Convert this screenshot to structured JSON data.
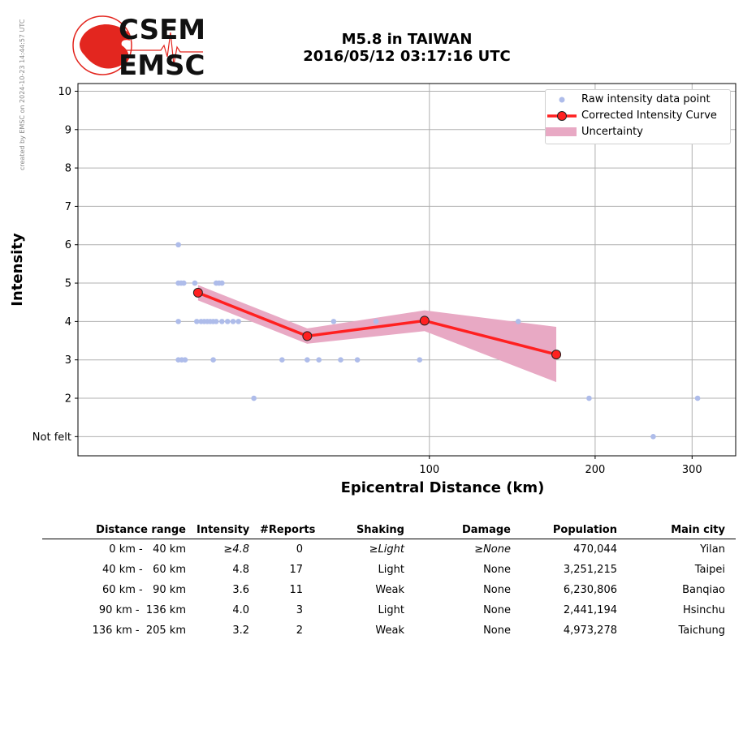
{
  "watermark": "created by EMSC on 2024-10-23 14:44:57 UTC",
  "logo": {
    "top_text": "CSEM",
    "bottom_text": "EMSC"
  },
  "header": {
    "title_line1": "M5.8 in TAIWAN",
    "title_line2": "2016/05/12 03:17:16 UTC"
  },
  "colors": {
    "raw": "#aebcea",
    "curve": "#ff2020",
    "marker": "#ff2020",
    "band": "#e8a9c4",
    "grid": "#b0b0b0",
    "logo_red": "#e3261f"
  },
  "chart_data": {
    "type": "line",
    "xlabel": "Epicentral Distance (km)",
    "ylabel": "Intensity",
    "x_scale": "log",
    "xlim": [
      23,
      360
    ],
    "ylim": [
      0.5,
      10.2
    ],
    "x_ticks": [
      100,
      200,
      300
    ],
    "y_ticks": [
      1,
      2,
      3,
      4,
      5,
      6,
      7,
      8,
      9,
      10
    ],
    "y_tick_labels": [
      "Not felt",
      "2",
      "3",
      "4",
      "5",
      "6",
      "7",
      "8",
      "9",
      "10"
    ],
    "grid": true,
    "legend_position": "top-right",
    "legend": [
      "Raw intensity data point",
      "Corrected Intensity Curve",
      "Uncertainty"
    ],
    "raw_points": [
      [
        35,
        6
      ],
      [
        35,
        5
      ],
      [
        35.4,
        5
      ],
      [
        35.8,
        5
      ],
      [
        37.5,
        5
      ],
      [
        41,
        5
      ],
      [
        41.5,
        5
      ],
      [
        42,
        5
      ],
      [
        35,
        4
      ],
      [
        37.8,
        4
      ],
      [
        38.5,
        4
      ],
      [
        39,
        4
      ],
      [
        39.5,
        4
      ],
      [
        40,
        4
      ],
      [
        40.5,
        4
      ],
      [
        41,
        4
      ],
      [
        42,
        4
      ],
      [
        43,
        4
      ],
      [
        44,
        4
      ],
      [
        45,
        4
      ],
      [
        35,
        3
      ],
      [
        35.5,
        3
      ],
      [
        36,
        3
      ],
      [
        40.5,
        3
      ],
      [
        48,
        2
      ],
      [
        54,
        3
      ],
      [
        60,
        3
      ],
      [
        63,
        3
      ],
      [
        67,
        4
      ],
      [
        69,
        3
      ],
      [
        74,
        3
      ],
      [
        80,
        4
      ],
      [
        96,
        3
      ],
      [
        145,
        4
      ],
      [
        195,
        2
      ],
      [
        255,
        1
      ],
      [
        307,
        2
      ]
    ],
    "curve": {
      "x": [
        38,
        60,
        98,
        170
      ],
      "y": [
        4.75,
        3.62,
        4.02,
        3.14
      ]
    },
    "uncertainty": {
      "x": [
        38,
        60,
        98,
        170
      ],
      "lower": [
        4.55,
        3.42,
        3.75,
        2.42
      ],
      "upper": [
        4.95,
        3.82,
        4.29,
        3.86
      ]
    }
  },
  "table": {
    "headers": [
      "Distance range",
      "Intensity",
      "#Reports",
      "Shaking",
      "Damage",
      "Population",
      "Main city"
    ],
    "rows": [
      {
        "range": "  0 km -   40 km",
        "intensity": "≥4.8",
        "reports": "0",
        "shaking": "≥Light",
        "damage": "≥None",
        "population": "470,044",
        "city": "Yilan",
        "italic": true
      },
      {
        "range": " 40 km -   60 km",
        "intensity": "4.8",
        "reports": "17",
        "shaking": "Light",
        "damage": "None",
        "population": "3,251,215",
        "city": "Taipei",
        "italic": false
      },
      {
        "range": " 60 km -   90 km",
        "intensity": "3.6",
        "reports": "11",
        "shaking": "Weak",
        "damage": "None",
        "population": "6,230,806",
        "city": "Banqiao",
        "italic": false
      },
      {
        "range": " 90 km -  136 km",
        "intensity": "4.0",
        "reports": "3",
        "shaking": "Light",
        "damage": "None",
        "population": "2,441,194",
        "city": "Hsinchu",
        "italic": false
      },
      {
        "range": "136 km -  205 km",
        "intensity": "3.2",
        "reports": "2",
        "shaking": "Weak",
        "damage": "None",
        "population": "4,973,278",
        "city": "Taichung",
        "italic": false
      }
    ]
  }
}
